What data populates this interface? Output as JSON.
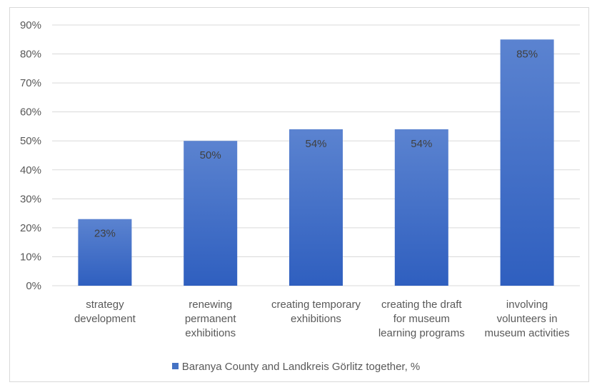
{
  "chart_data": {
    "type": "bar",
    "categories": [
      [
        "strategy",
        "development"
      ],
      [
        "renewing",
        "permanent",
        "exhibitions"
      ],
      [
        "creating temporary",
        "exhibitions"
      ],
      [
        "creating the draft",
        "for museum",
        "learning programs"
      ],
      [
        "involving",
        "volunteers in",
        "museum activities"
      ]
    ],
    "series": [
      {
        "name": "Baranya County and Landkreis Görlitz together, %",
        "values": [
          23,
          50,
          54,
          54,
          85
        ],
        "color": "#4472c4"
      }
    ],
    "data_labels": [
      "23%",
      "50%",
      "54%",
      "54%",
      "85%"
    ],
    "y_ticks": [
      "0%",
      "10%",
      "20%",
      "30%",
      "40%",
      "50%",
      "60%",
      "70%",
      "80%",
      "90%"
    ],
    "ylim": [
      0,
      90
    ],
    "grid": true,
    "legend_position": "bottom"
  }
}
